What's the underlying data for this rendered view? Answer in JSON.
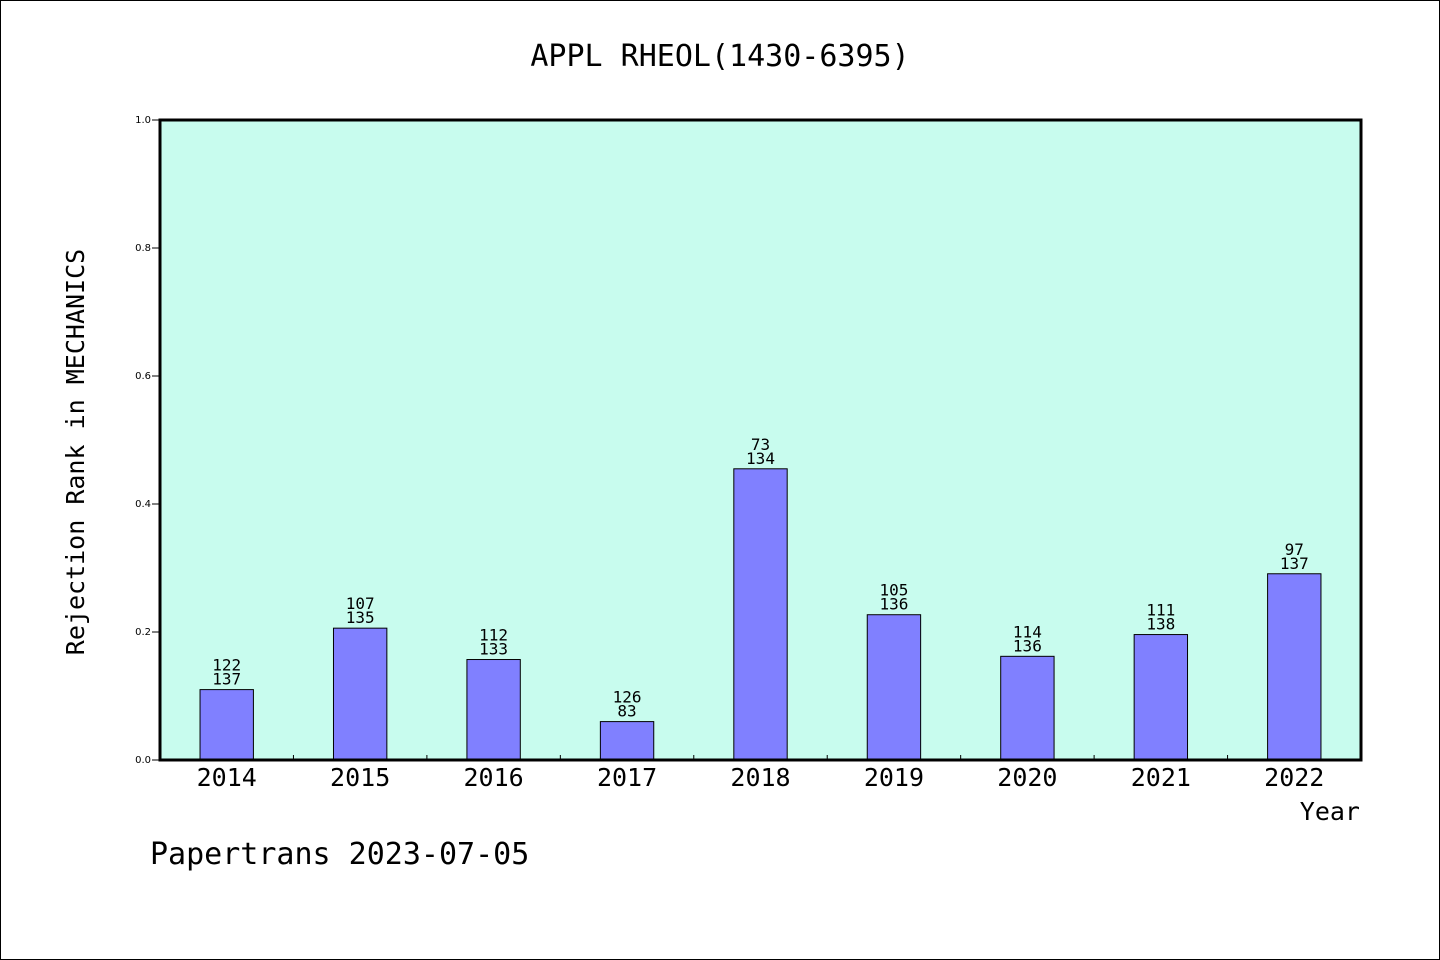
{
  "chart_data": {
    "type": "bar",
    "title": "APPL RHEOL(1430-6395)",
    "xlabel": "Year",
    "ylabel": "Rejection Rank in MECHANICS",
    "ylim": [
      0,
      1.0
    ],
    "yticks": [
      "0.0",
      "0.2",
      "0.4",
      "0.6",
      "0.8",
      "1.0"
    ],
    "categories": [
      "2014",
      "2015",
      "2016",
      "2017",
      "2018",
      "2019",
      "2020",
      "2021",
      "2022"
    ],
    "values": [
      0.11,
      0.206,
      0.157,
      0.06,
      0.455,
      0.227,
      0.162,
      0.196,
      0.291
    ],
    "label_top": [
      "122",
      "107",
      "112",
      "126",
      "73",
      "105",
      "114",
      "111",
      "97"
    ],
    "label_bottom": [
      "137",
      "135",
      "133",
      "83",
      "134",
      "136",
      "136",
      "138",
      "137"
    ],
    "grid": false,
    "legend": "none",
    "colors": {
      "plot_background": "#c8fcee",
      "bar_fill": "#8080ff",
      "bar_stroke": "#000000"
    }
  },
  "footer": "Papertrans 2023-07-05"
}
